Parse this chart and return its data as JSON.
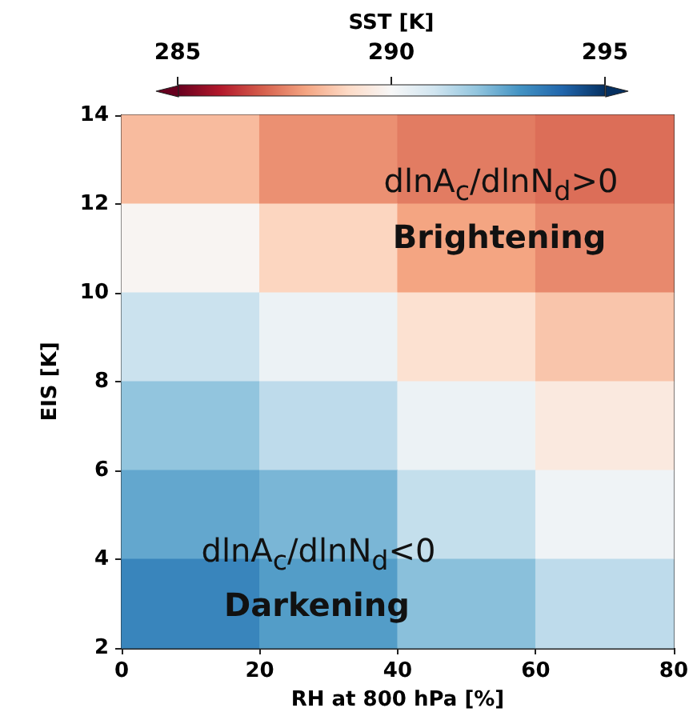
{
  "chart_data": {
    "type": "heatmap",
    "xlabel": "RH at 800 hPa [%]",
    "ylabel": "EIS [K]",
    "clabel": "SST [K]",
    "xlim": [
      0,
      80
    ],
    "xticks": [
      0,
      20,
      40,
      60,
      80
    ],
    "ylim": [
      2,
      14
    ],
    "yticks": [
      2,
      4,
      6,
      8,
      10,
      12,
      14
    ],
    "clim": [
      285,
      295
    ],
    "cticks": [
      285,
      290,
      295
    ],
    "cells": [
      [
        288.4,
        287.7,
        287.4,
        287.2
      ],
      [
        289.9,
        288.9,
        288.0,
        287.6
      ],
      [
        291.1,
        290.3,
        289.2,
        288.6
      ],
      [
        292.0,
        291.3,
        290.3,
        289.5
      ],
      [
        292.6,
        292.3,
        291.2,
        290.2
      ],
      [
        293.3,
        292.8,
        292.1,
        291.3
      ]
    ],
    "annotations": [
      "dlnA$_{c}$/dlnN$_{d}$>0",
      "Brightening",
      "dlnA$_{c}$/dlnN$_{d}$<0",
      "Darkening"
    ]
  }
}
